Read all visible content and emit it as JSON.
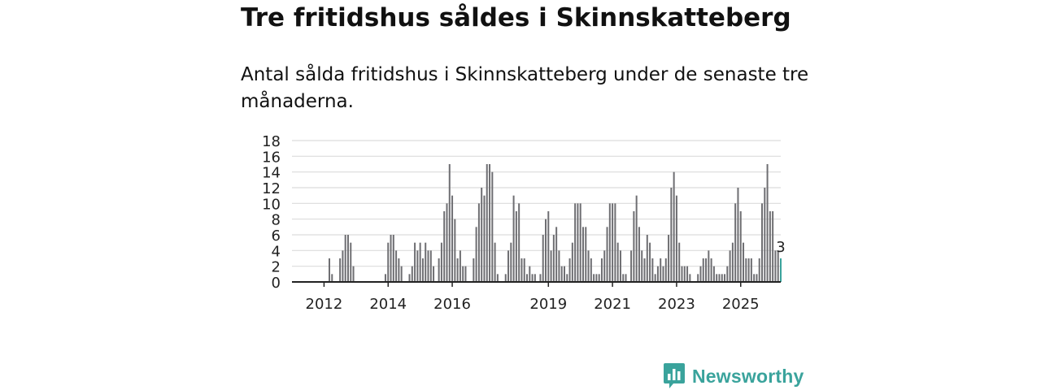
{
  "title": "Tre fritidshus såldes i Skinnskatteberg",
  "subtitle": "Antal sålda fritidshus i Skinnskatteberg under de senaste tre månaderna.",
  "brand": {
    "name": "Newsworthy",
    "icon": "newsworthy-bar-chart-icon"
  },
  "colors": {
    "bar": "#6e6e72",
    "highlight": "#3aa39c",
    "grid": "#dcdcdc",
    "axis": "#222222",
    "brand": "#3aa39c"
  },
  "chart_data": {
    "type": "bar",
    "ylim": [
      0,
      18
    ],
    "yticks": [
      0,
      2,
      4,
      6,
      8,
      10,
      12,
      14,
      16,
      18
    ],
    "grid": true,
    "xtick_labels": [
      {
        "label": "2012",
        "index": 5
      },
      {
        "label": "2014",
        "index": 29
      },
      {
        "label": "2016",
        "index": 53
      },
      {
        "label": "2019",
        "index": 89
      },
      {
        "label": "2021",
        "index": 113
      },
      {
        "label": "2023",
        "index": 137
      },
      {
        "label": "2025",
        "index": 161
      }
    ],
    "values": [
      0,
      0,
      0,
      0,
      0,
      0,
      0,
      3,
      1,
      0,
      0,
      3,
      4,
      6,
      6,
      5,
      2,
      0,
      0,
      0,
      0,
      0,
      0,
      0,
      0,
      0,
      0,
      0,
      1,
      5,
      6,
      6,
      4,
      3,
      2,
      0,
      0,
      1,
      2,
      5,
      4,
      5,
      3,
      5,
      4,
      4,
      2,
      0,
      3,
      5,
      9,
      10,
      15,
      11,
      8,
      3,
      4,
      2,
      2,
      0,
      0,
      3,
      7,
      10,
      12,
      11,
      15,
      15,
      14,
      5,
      1,
      0,
      0,
      1,
      4,
      5,
      11,
      9,
      10,
      3,
      3,
      1,
      2,
      1,
      1,
      0,
      1,
      6,
      8,
      9,
      4,
      6,
      7,
      4,
      2,
      2,
      1,
      3,
      5,
      10,
      10,
      10,
      7,
      7,
      4,
      3,
      1,
      1,
      1,
      3,
      4,
      7,
      10,
      10,
      10,
      5,
      4,
      1,
      1,
      0,
      4,
      9,
      11,
      7,
      4,
      3,
      6,
      5,
      3,
      1,
      2,
      3,
      2,
      3,
      6,
      12,
      14,
      11,
      5,
      2,
      2,
      2,
      1,
      0,
      0,
      1,
      2,
      3,
      3,
      4,
      3,
      2,
      1,
      1,
      1,
      1,
      2,
      4,
      5,
      10,
      12,
      9,
      5,
      3,
      3,
      3,
      1,
      1,
      3,
      10,
      12,
      15,
      9,
      9,
      4,
      4,
      3
    ],
    "highlight_last": true,
    "last_value_label": "3"
  }
}
